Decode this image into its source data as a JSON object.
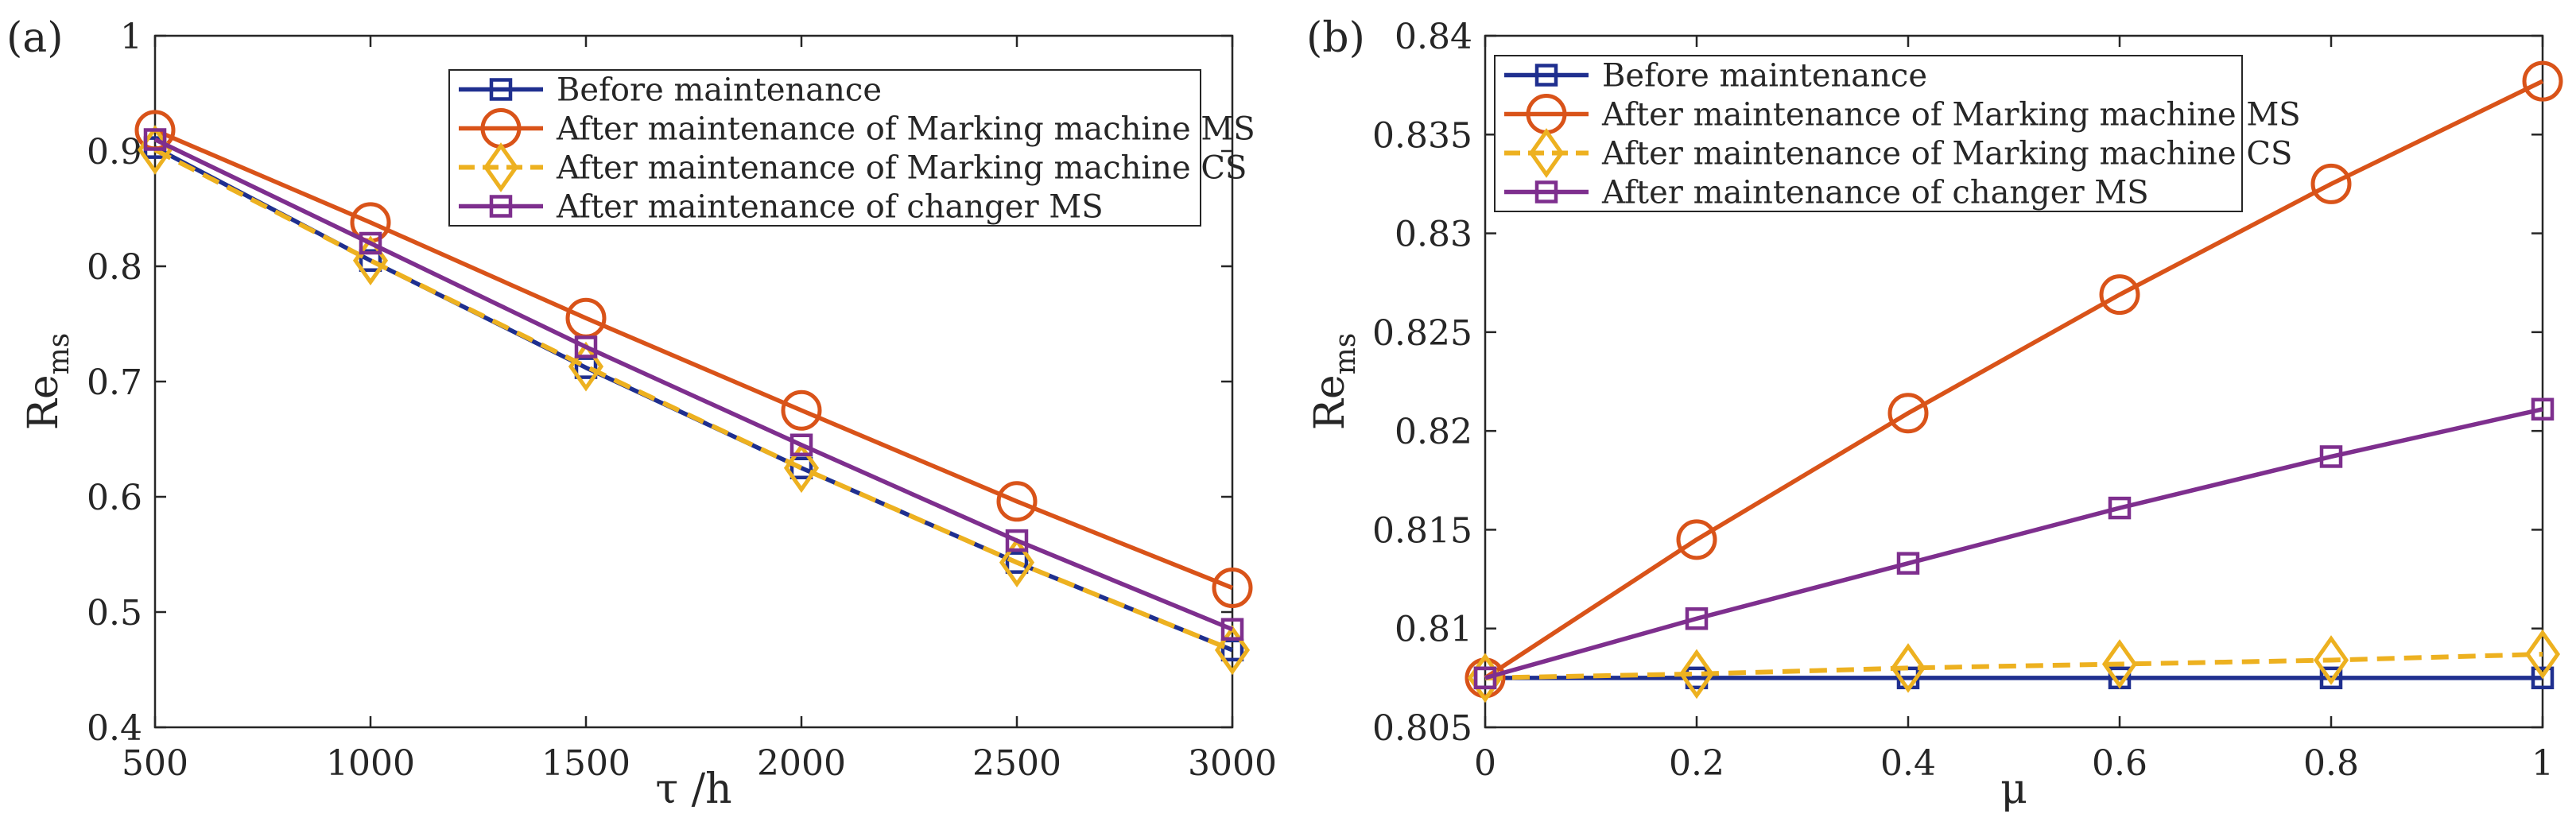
{
  "chart_data": [
    {
      "type": "line",
      "panel_label": "(a)",
      "xlabel": "τ /h",
      "ylabel_main": "Re",
      "ylabel_sub": "ms",
      "x": [
        500,
        1000,
        1500,
        2000,
        2500,
        3000
      ],
      "xlim": [
        500,
        3000
      ],
      "ylim": [
        0.4,
        1.0
      ],
      "xticks": [
        "500",
        "1000",
        "1500",
        "2000",
        "2500",
        "3000"
      ],
      "yticks": [
        "0.4",
        "0.5",
        "0.6",
        "0.7",
        "0.8",
        "0.9",
        "1"
      ],
      "legend_position": "top-right",
      "series": [
        {
          "name": "Before maintenance",
          "color": "#1f2f8f",
          "marker": "square",
          "dashed": false,
          "values": [
            0.903,
            0.805,
            0.712,
            0.625,
            0.543,
            0.467
          ]
        },
        {
          "name": "After maintenance of Marking machine MS",
          "color": "#d95319",
          "marker": "circle",
          "dashed": false,
          "values": [
            0.918,
            0.838,
            0.755,
            0.675,
            0.596,
            0.521
          ]
        },
        {
          "name": "After maintenance of Marking machine CS",
          "color": "#edb120",
          "marker": "diamond",
          "dashed": true,
          "values": [
            0.901,
            0.805,
            0.713,
            0.625,
            0.543,
            0.467
          ]
        },
        {
          "name": "After maintenance of changer MS",
          "color": "#7e2f8e",
          "marker": "square",
          "dashed": false,
          "values": [
            0.91,
            0.82,
            0.73,
            0.645,
            0.562,
            0.485
          ]
        }
      ]
    },
    {
      "type": "line",
      "panel_label": "(b)",
      "xlabel": "μ",
      "ylabel_main": "Re",
      "ylabel_sub": "ms",
      "x": [
        0,
        0.2,
        0.4,
        0.6,
        0.8,
        1.0
      ],
      "xlim": [
        0,
        1
      ],
      "ylim": [
        0.805,
        0.84
      ],
      "xticks": [
        "0",
        "0.2",
        "0.4",
        "0.6",
        "0.8",
        "1"
      ],
      "yticks": [
        "0.805",
        "0.81",
        "0.815",
        "0.82",
        "0.825",
        "0.83",
        "0.835",
        "0.84"
      ],
      "legend_position": "top-left",
      "series": [
        {
          "name": "Before maintenance",
          "color": "#1f2f8f",
          "marker": "square",
          "dashed": false,
          "values": [
            0.8075,
            0.8075,
            0.8075,
            0.8075,
            0.8075,
            0.8075
          ]
        },
        {
          "name": "After maintenance of Marking machine MS",
          "color": "#d95319",
          "marker": "circle",
          "dashed": false,
          "values": [
            0.8075,
            0.8145,
            0.8209,
            0.8269,
            0.8325,
            0.8377
          ]
        },
        {
          "name": "After maintenance of Marking machine CS",
          "color": "#edb120",
          "marker": "diamond",
          "dashed": true,
          "values": [
            0.8075,
            0.8077,
            0.808,
            0.8082,
            0.8084,
            0.8087
          ]
        },
        {
          "name": "After maintenance of changer MS",
          "color": "#7e2f8e",
          "marker": "square",
          "dashed": false,
          "values": [
            0.8075,
            0.8105,
            0.8133,
            0.8161,
            0.8187,
            0.8211
          ]
        }
      ]
    }
  ]
}
